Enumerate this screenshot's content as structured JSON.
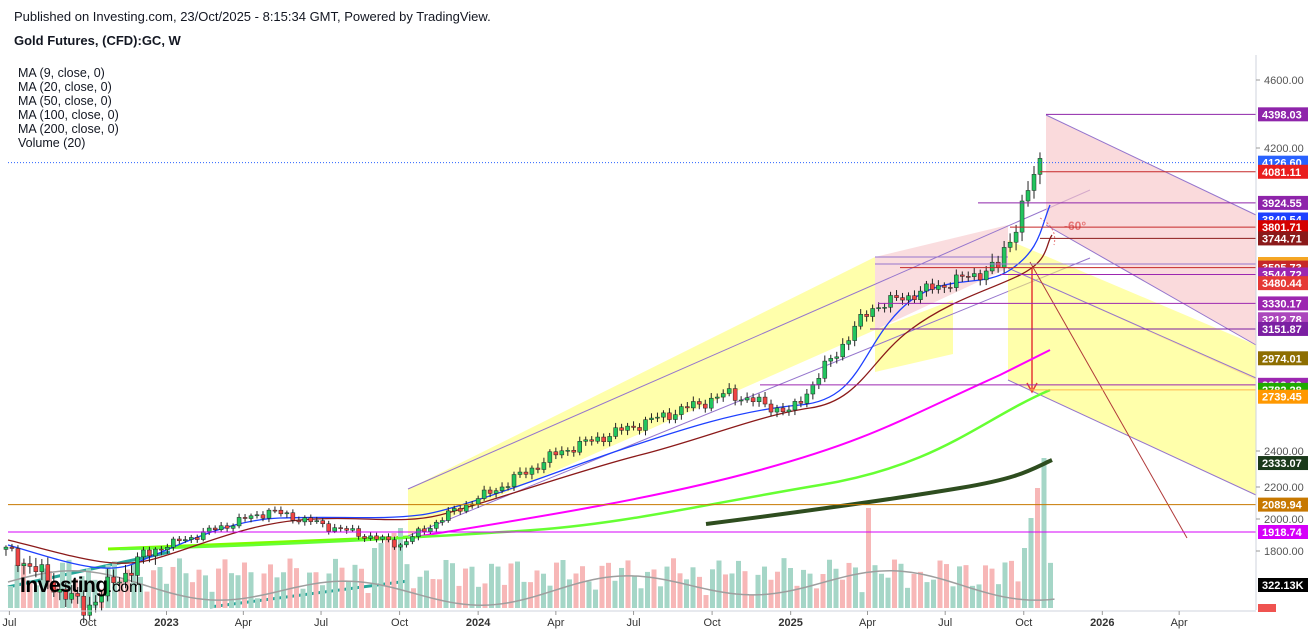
{
  "header": {
    "published": "Published on Investing.com, 23/Oct/2025 - 8:15:34 GMT, Powered by TradingView.",
    "instrument": "Gold Futures, (CFD):GC, W"
  },
  "indicators": [
    "MA (9, close, 0)",
    "MA (20, close, 0)",
    "MA (50, close, 0)",
    "MA (100, close, 0)",
    "MA (200, close, 0)",
    "Volume (20)"
  ],
  "logo": {
    "main": "Investing",
    "suffix": ".com"
  },
  "chart_data": {
    "type": "candlestick",
    "x_axis": {
      "ticks": [
        "Jul",
        "Oct",
        "2023",
        "Apr",
        "Jul",
        "Oct",
        "2024",
        "Apr",
        "Jul",
        "Oct",
        "2025",
        "Apr",
        "Jul",
        "Oct",
        "2026",
        "Apr"
      ],
      "range": [
        "2022-06-20",
        "2026-06-30"
      ]
    },
    "y_axis": {
      "ticks": [
        1800,
        2000,
        2200,
        2400,
        4200,
        4600
      ],
      "tick_labels": [
        "1800.00",
        "2000.00",
        "2200.00",
        "2400.00",
        "4200.00",
        "4600.00"
      ],
      "range": [
        1650,
        4760
      ],
      "price_labels": [
        {
          "text": "4398.03",
          "value": 4398.03,
          "color": "#8e24aa"
        },
        {
          "text": "4126.60",
          "value": 4126.6,
          "color": "#2962ff"
        },
        {
          "text": "4081.11",
          "value": 4081.11,
          "color": "#e91e1e"
        },
        {
          "text": "3924.55",
          "value": 3924.55,
          "color": "#8e24aa"
        },
        {
          "text": "3840.54",
          "value": 3840.54,
          "color": "#1e40ff"
        },
        {
          "text": "3801.71",
          "value": 3801.71,
          "color": "#d50000"
        },
        {
          "text": "3744.71",
          "value": 3744.71,
          "color": "#8b1a1a"
        },
        {
          "text": "3615.16",
          "value": 3615.16,
          "color": "#f5a623"
        },
        {
          "text": "3595.73",
          "value": 3595.73,
          "color": "#c62828"
        },
        {
          "text": "3544.72",
          "value": 3544.72,
          "color": "#9c27b0"
        },
        {
          "text": "3480.44",
          "value": 3480.44,
          "color": "#e53935"
        },
        {
          "text": "3330.17",
          "value": 3330.17,
          "color": "#9c27b0"
        },
        {
          "text": "3212.78",
          "value": 3212.78,
          "color": "#ab47bc"
        },
        {
          "text": "3151.87",
          "value": 3151.87,
          "color": "#7b1fa2"
        },
        {
          "text": "2974.01",
          "value": 2974.01,
          "color": "#8d6e00"
        },
        {
          "text": "2813.23",
          "value": 2813.23,
          "color": "#9c27b0"
        },
        {
          "text": "2782.28",
          "value": 2782.28,
          "color": "#1faa00"
        },
        {
          "text": "2739.45",
          "value": 2739.45,
          "color": "#ff9800"
        },
        {
          "text": "2333.07",
          "value": 2333.07,
          "color": "#1b3a1b"
        },
        {
          "text": "2089.94",
          "value": 2089.94,
          "color": "#c77800"
        },
        {
          "text": "1918.74",
          "value": 1918.74,
          "color": "#d500f9"
        }
      ],
      "volume_label": {
        "text": "322.13K",
        "color": "#000000"
      }
    },
    "candles_weekly_summary": [
      {
        "date": "2022-06-27",
        "close": 1810
      },
      {
        "date": "2022-09-26",
        "close": 1660
      },
      {
        "date": "2022-12-30",
        "close": 1830
      },
      {
        "date": "2023-05-01",
        "close": 2050
      },
      {
        "date": "2023-10-02",
        "close": 1840
      },
      {
        "date": "2023-12-04",
        "close": 2050
      },
      {
        "date": "2024-04-08",
        "close": 2400
      },
      {
        "date": "2024-10-21",
        "close": 2760
      },
      {
        "date": "2025-01-01",
        "close": 2640
      },
      {
        "date": "2025-04-07",
        "close": 3300
      },
      {
        "date": "2025-09-01",
        "close": 3600
      },
      {
        "date": "2025-10-20",
        "close": 4126.6
      }
    ],
    "grid": false,
    "annotations": [
      {
        "text": "-60°",
        "color": "#e57373"
      }
    ]
  }
}
